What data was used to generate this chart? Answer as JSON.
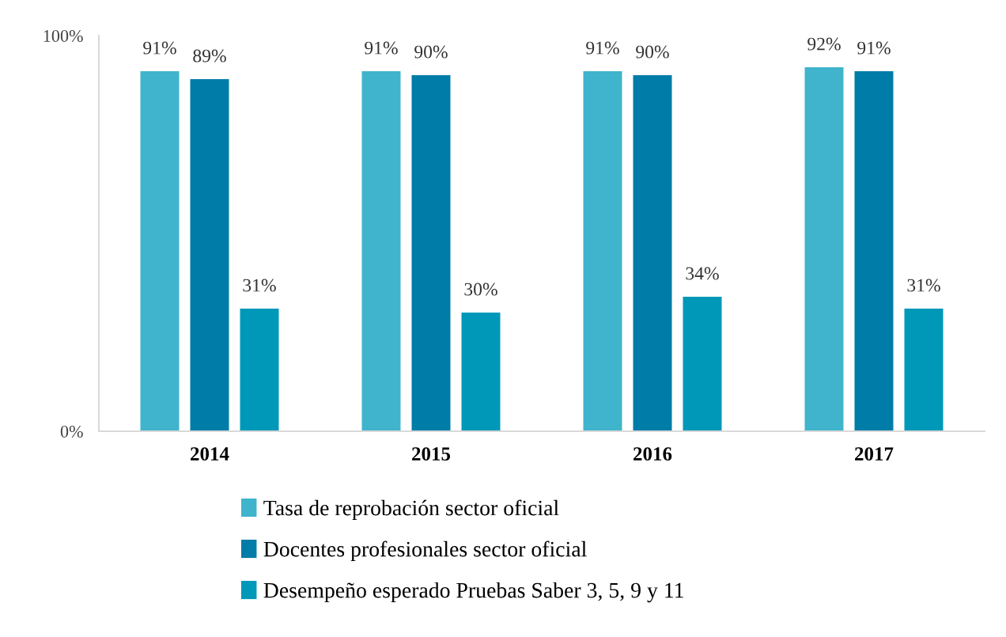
{
  "chart_data": {
    "type": "bar",
    "categories": [
      "2014",
      "2015",
      "2016",
      "2017"
    ],
    "series": [
      {
        "name": "Tasa de reprobación sector oficial",
        "color": "#40b4cc",
        "values": [
          91,
          91,
          91,
          92
        ],
        "value_labels": [
          "91%",
          "91%",
          "91%",
          "92%"
        ]
      },
      {
        "name": "Docentes profesionales sector oficial",
        "color": "#007ca8",
        "values": [
          89,
          90,
          90,
          91
        ],
        "value_labels": [
          "89%",
          "90%",
          "90%",
          "91%"
        ]
      },
      {
        "name": "Desempeño esperado Pruebas Saber 3, 5, 9 y 11",
        "color": "#0098b8",
        "values": [
          31,
          30,
          34,
          31
        ],
        "value_labels": [
          "31%",
          "30%",
          "34%",
          "31%"
        ]
      }
    ],
    "ylim": [
      0,
      100
    ],
    "yticks": [
      {
        "value": 0,
        "label": "0%"
      },
      {
        "value": 100,
        "label": "100%"
      }
    ],
    "grid": false,
    "legend": "bottom"
  }
}
